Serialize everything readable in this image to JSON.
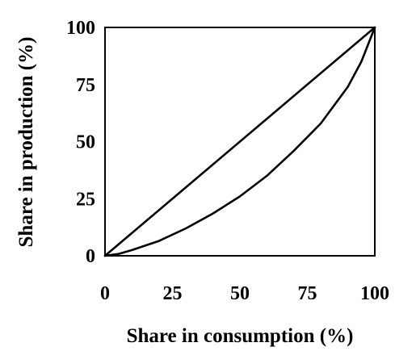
{
  "chart_data": {
    "type": "line",
    "title": "",
    "xlabel": "Share in consumption (%)",
    "ylabel": "Share in production (%)",
    "xlim": [
      0,
      100
    ],
    "ylim": [
      0,
      100
    ],
    "x_ticks": [
      "0",
      "25",
      "50",
      "75",
      "100"
    ],
    "y_ticks": [
      "0",
      "25",
      "50",
      "75",
      "100"
    ],
    "grid": false,
    "legend": "none",
    "series": [
      {
        "x": [
          0,
          100
        ],
        "y": [
          0,
          100
        ]
      },
      {
        "x": [
          0,
          5,
          10,
          20,
          30,
          40,
          50,
          60,
          70,
          80,
          90,
          95,
          100
        ],
        "y": [
          0,
          0.8,
          2.5,
          6.5,
          12,
          18.5,
          26,
          35,
          46,
          58,
          74,
          85,
          100
        ]
      }
    ],
    "colors": {
      "line": "#000000",
      "axes": "#000000",
      "background": "#ffffff"
    }
  }
}
